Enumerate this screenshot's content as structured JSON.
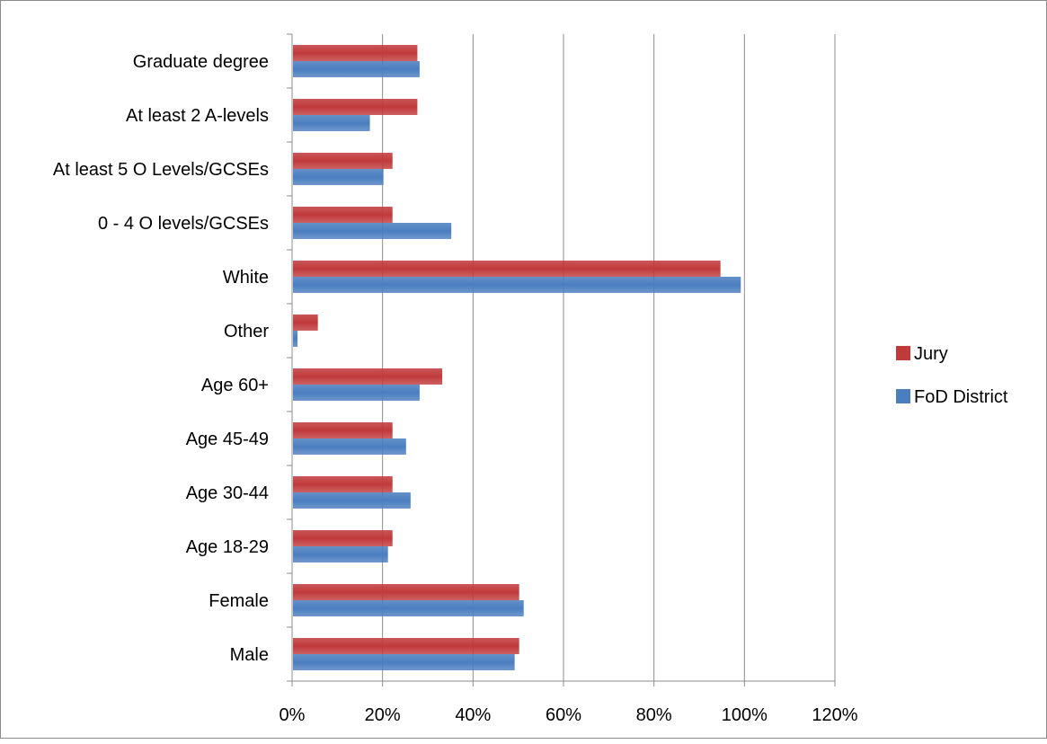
{
  "chart_data": {
    "type": "bar",
    "orientation": "horizontal",
    "categories": [
      "Male",
      "Female",
      "Age 18-29",
      "Age 30-44",
      "Age 45-49",
      "Age 60+",
      "Other",
      "White",
      "0 - 4 O levels/GCSEs",
      "At least 5 O Levels/GCSEs",
      "At least 2 A-levels",
      "Graduate degree"
    ],
    "series": [
      {
        "name": "Jury",
        "color": "#c0393b",
        "values": [
          50,
          50,
          22,
          22,
          22,
          33,
          5.5,
          94.5,
          22,
          22,
          27.5,
          27.5
        ]
      },
      {
        "name": "FoD District",
        "color": "#4a7ebf",
        "values": [
          49,
          51,
          21,
          26,
          25,
          28,
          1,
          99,
          35,
          20,
          17,
          28
        ]
      }
    ],
    "xlim": [
      0,
      120
    ],
    "xticks": [
      "0%",
      "20%",
      "40%",
      "60%",
      "80%",
      "100%",
      "120%"
    ],
    "grid": true,
    "legend_position": "right",
    "title": "",
    "xlabel": "",
    "ylabel": ""
  }
}
